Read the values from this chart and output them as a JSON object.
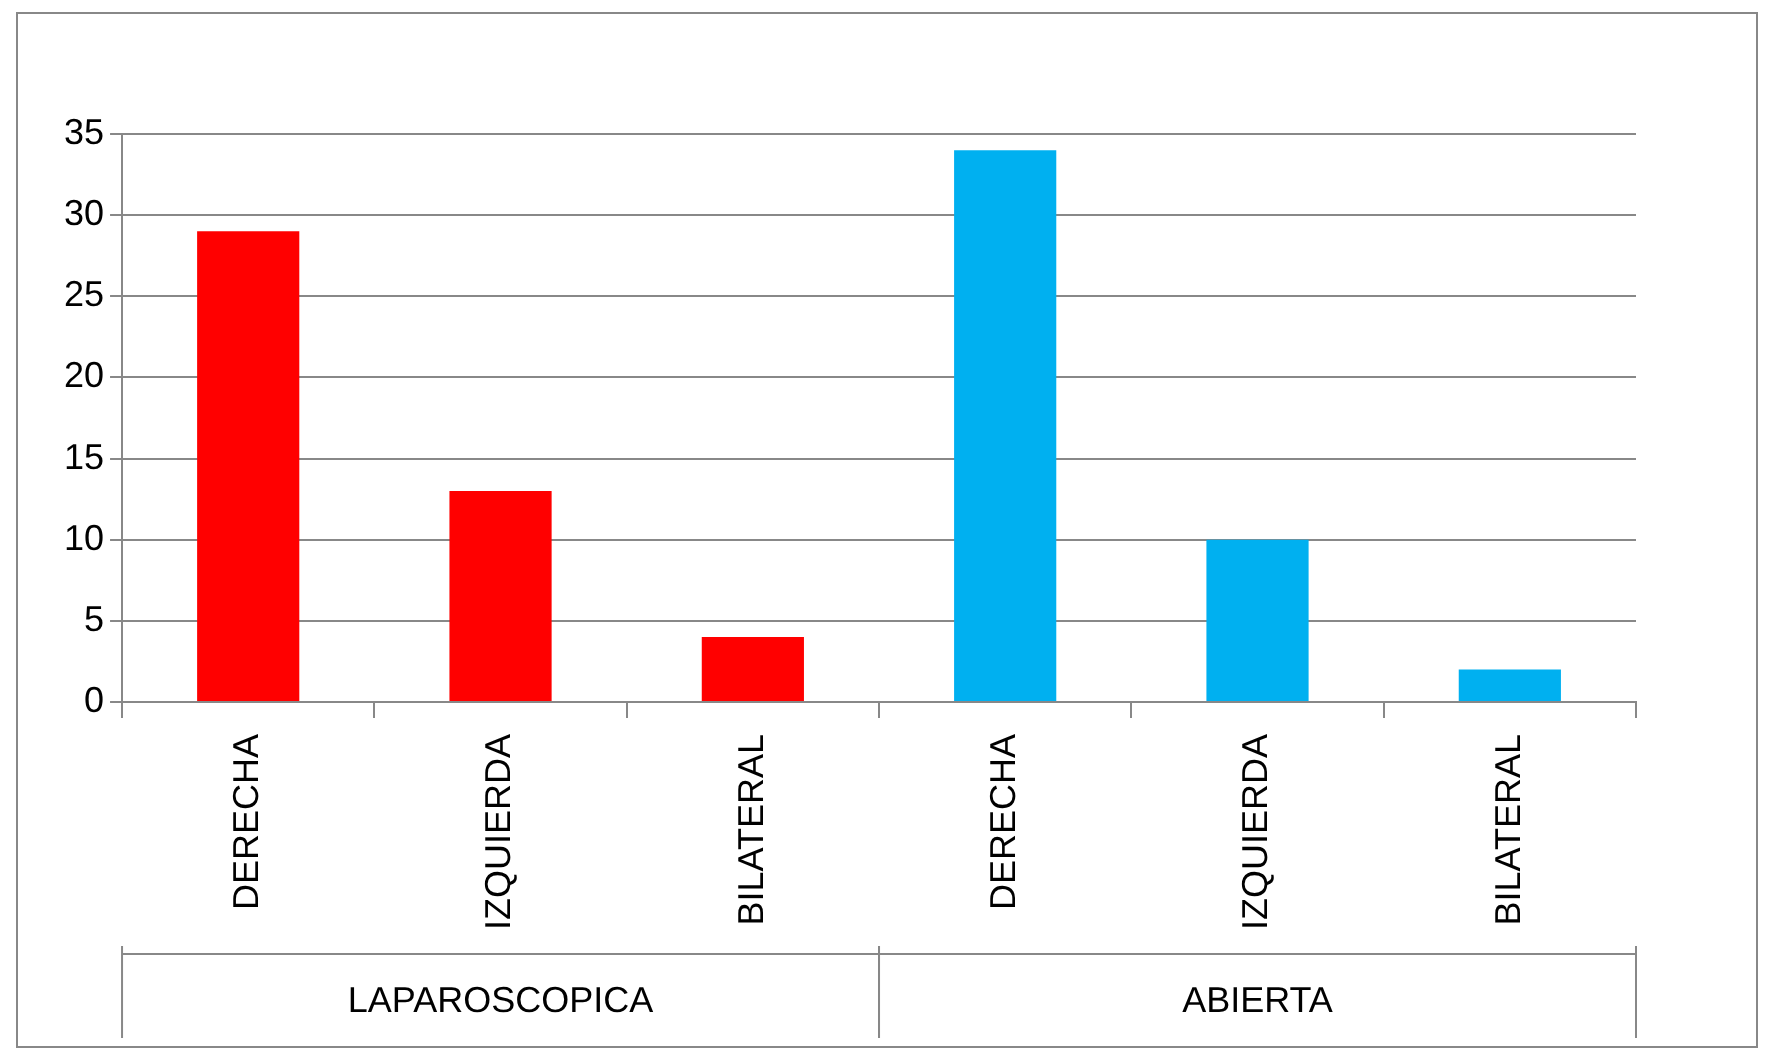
{
  "chart_data": {
    "type": "bar",
    "categories": [
      "DERECHA",
      "IZQUIERDA",
      "BILATERAL",
      "DERECHA",
      "IZQUIERDA",
      "BILATERAL"
    ],
    "values": [
      29,
      13,
      4,
      34,
      10,
      2
    ],
    "colors": [
      "#ff0000",
      "#ff0000",
      "#ff0000",
      "#00b0f0",
      "#00b0f0",
      "#00b0f0"
    ],
    "ylim": [
      0,
      35
    ],
    "yticks": [
      0,
      5,
      10,
      15,
      20,
      25,
      30,
      35
    ],
    "grid": "y",
    "annotations": [
      "LAPAROSCOPICA",
      "ABIERTA"
    ]
  }
}
